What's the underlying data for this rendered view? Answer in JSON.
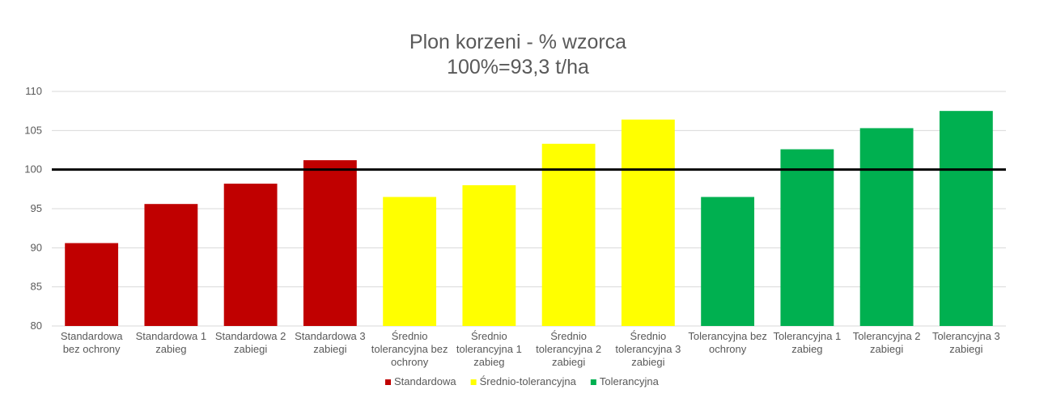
{
  "chart_data": {
    "type": "bar",
    "title": "Plon korzeni - % wzorca",
    "subtitle": "100%=93,3 t/ha",
    "xlabel": "",
    "ylabel": "",
    "ylim": [
      80,
      110
    ],
    "yticks": [
      80,
      85,
      90,
      95,
      100,
      105,
      110
    ],
    "grid": true,
    "legend_position": "bottom",
    "reference_line": 100,
    "categories": [
      "Standardowa bez ochrony",
      "Standardowa 1 zabieg",
      "Standardowa 2 zabiegi",
      "Standardowa 3 zabiegi",
      "Średnio tolerancyjna bez ochrony",
      "Średnio tolerancyjna 1 zabieg",
      "Średnio tolerancyjna 2 zabiegi",
      "Średnio tolerancyjna 3 zabiegi",
      "Tolerancyjna bez ochrony",
      "Tolerancyjna 1 zabieg",
      "Tolerancyjna 2 zabiegi",
      "Tolerancyjna 3 zabiegi"
    ],
    "category_lines": [
      [
        "Standardowa",
        "bez ochrony"
      ],
      [
        "Standardowa 1",
        "zabieg"
      ],
      [
        "Standardowa 2",
        "zabiegi"
      ],
      [
        "Standardowa 3",
        "zabiegi"
      ],
      [
        "Średnio",
        "tolerancyjna bez",
        "ochrony"
      ],
      [
        "Średnio",
        "tolerancyjna 1",
        "zabieg"
      ],
      [
        "Średnio",
        "tolerancyjna 2",
        "zabiegi"
      ],
      [
        "Średnio",
        "tolerancyjna 3",
        "zabiegi"
      ],
      [
        "Tolerancyjna bez",
        "ochrony"
      ],
      [
        "Tolerancyjna 1",
        "zabieg"
      ],
      [
        "Tolerancyjna 2",
        "zabiegi"
      ],
      [
        "Tolerancyjna 3",
        "zabiegi"
      ]
    ],
    "series": [
      {
        "name": "Standardowa",
        "color": "#c00000",
        "values": [
          90.6,
          95.6,
          98.2,
          101.2,
          null,
          null,
          null,
          null,
          null,
          null,
          null,
          null
        ]
      },
      {
        "name": "Średnio-tolerancyjna",
        "color": "#ffff00",
        "values": [
          null,
          null,
          null,
          null,
          96.5,
          98.0,
          103.3,
          106.4,
          null,
          null,
          null,
          null
        ]
      },
      {
        "name": "Tolerancyjna",
        "color": "#00b050",
        "values": [
          null,
          null,
          null,
          null,
          null,
          null,
          null,
          null,
          96.5,
          102.6,
          105.3,
          107.5
        ]
      }
    ]
  }
}
